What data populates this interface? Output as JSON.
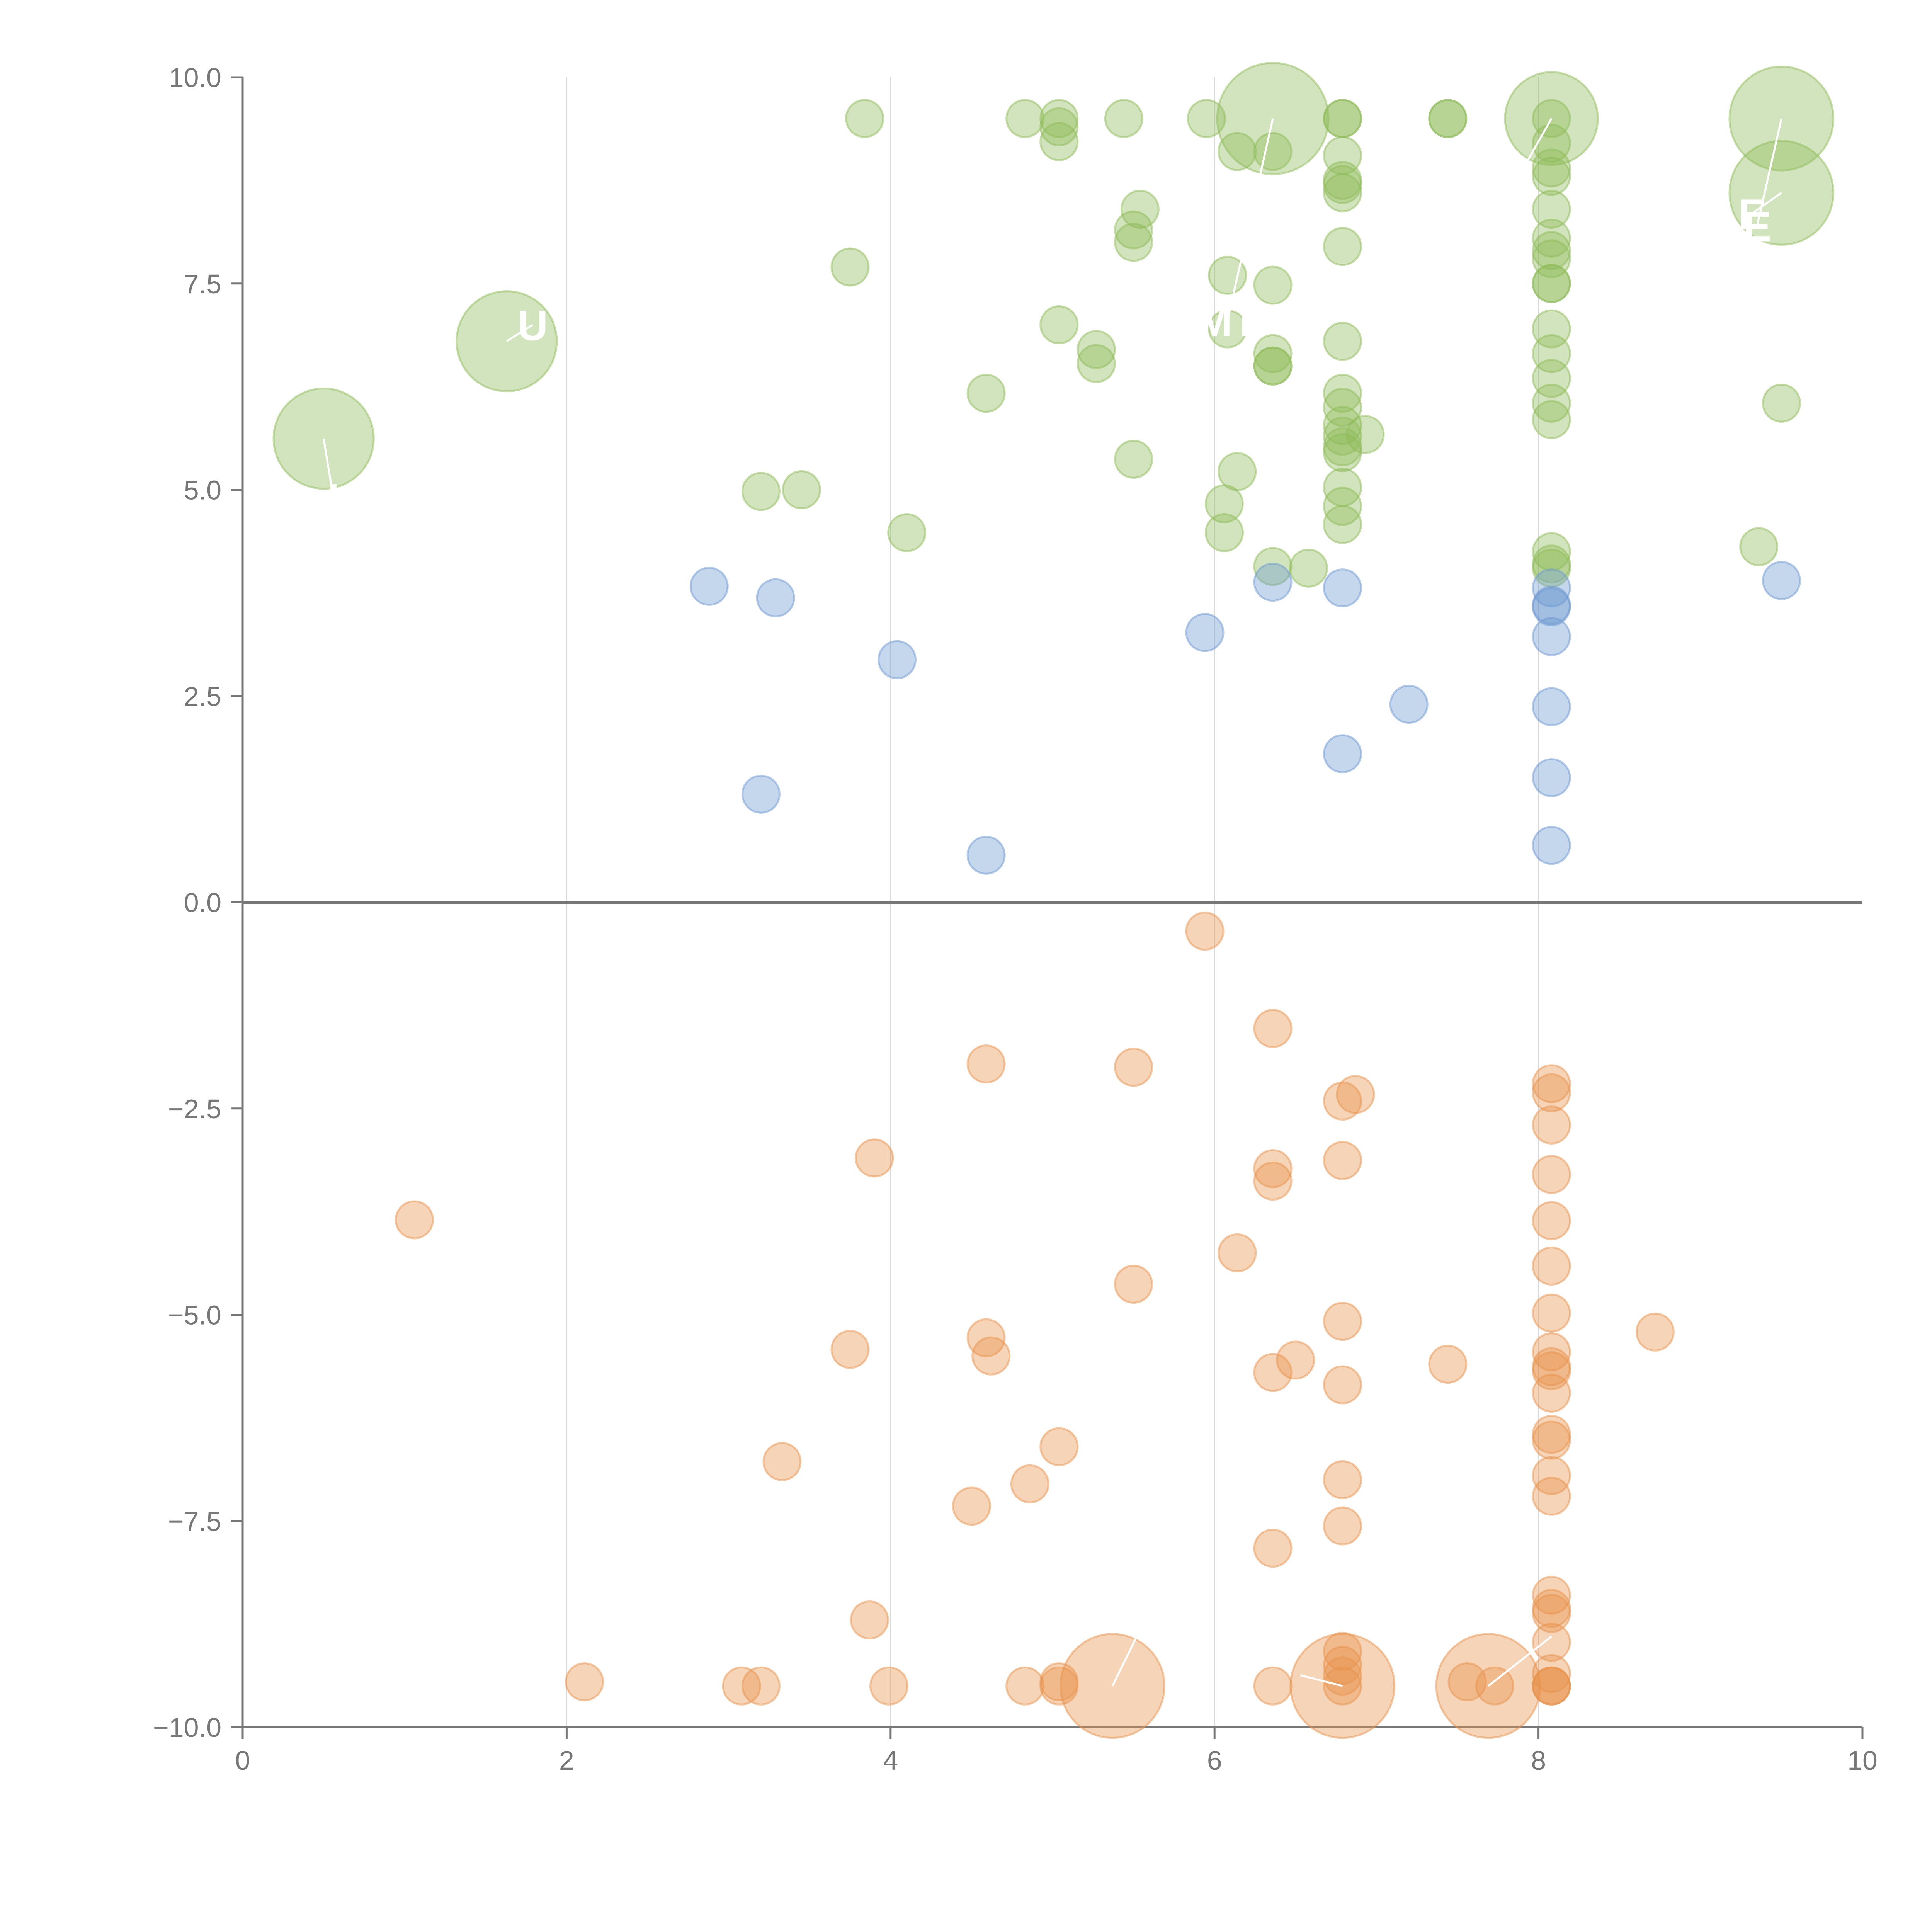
{
  "chart_data": {
    "type": "scatter",
    "title": "",
    "xlabel": "",
    "ylabel": "",
    "xlim": [
      0,
      10
    ],
    "ylim": [
      -10,
      10
    ],
    "x_ticks": [
      "0",
      "2",
      "4",
      "6",
      "8",
      "10"
    ],
    "y_ticks": [
      "10.0",
      "7.5",
      "5.0",
      "2.5",
      "0.0",
      "−2.5",
      "−5.0",
      "−7.5",
      "−10.0"
    ],
    "grid": "vertical",
    "legend": "none",
    "series": [
      {
        "name": "green",
        "color": "#8fbc5a",
        "points": [
          {
            "x": 3.84,
            "y": 9.5
          },
          {
            "x": 4.83,
            "y": 9.5
          },
          {
            "x": 5.04,
            "y": 9.5
          },
          {
            "x": 5.04,
            "y": 9.4
          },
          {
            "x": 5.44,
            "y": 9.5
          },
          {
            "x": 5.95,
            "y": 9.5
          },
          {
            "x": 6.36,
            "y": 9.5,
            "s": 3
          },
          {
            "x": 6.79,
            "y": 9.5
          },
          {
            "x": 6.79,
            "y": 9.5
          },
          {
            "x": 7.44,
            "y": 9.5
          },
          {
            "x": 7.44,
            "y": 9.5
          },
          {
            "x": 8.08,
            "y": 9.5,
            "s": 2.5
          },
          {
            "x": 8.08,
            "y": 9.5
          },
          {
            "x": 9.5,
            "y": 9.5,
            "s": 2.8
          },
          {
            "x": 5.04,
            "y": 9.22
          },
          {
            "x": 6.14,
            "y": 9.1
          },
          {
            "x": 6.36,
            "y": 9.1
          },
          {
            "x": 6.79,
            "y": 9.05
          },
          {
            "x": 6.79,
            "y": 8.75
          },
          {
            "x": 6.79,
            "y": 8.7
          },
          {
            "x": 6.79,
            "y": 8.6
          },
          {
            "x": 8.08,
            "y": 9.2
          },
          {
            "x": 8.08,
            "y": 8.9
          },
          {
            "x": 8.08,
            "y": 8.8
          },
          {
            "x": 8.08,
            "y": 8.4
          },
          {
            "x": 8.08,
            "y": 8.05
          },
          {
            "x": 8.08,
            "y": 7.9
          },
          {
            "x": 8.08,
            "y": 7.8
          },
          {
            "x": 8.08,
            "y": 7.5
          },
          {
            "x": 8.08,
            "y": 7.5
          },
          {
            "x": 5.54,
            "y": 8.4
          },
          {
            "x": 5.5,
            "y": 8.15
          },
          {
            "x": 5.5,
            "y": 8.0
          },
          {
            "x": 6.79,
            "y": 7.95
          },
          {
            "x": 9.5,
            "y": 8.6,
            "s": 2.8
          },
          {
            "x": 3.75,
            "y": 7.7
          },
          {
            "x": 6.08,
            "y": 7.6
          },
          {
            "x": 6.36,
            "y": 7.48
          },
          {
            "x": 1.63,
            "y": 6.8,
            "s": 2.7
          },
          {
            "x": 6.08,
            "y": 6.95
          },
          {
            "x": 5.04,
            "y": 7.0
          },
          {
            "x": 6.79,
            "y": 6.8
          },
          {
            "x": 8.08,
            "y": 6.95
          },
          {
            "x": 8.08,
            "y": 6.65
          },
          {
            "x": 8.08,
            "y": 6.35
          },
          {
            "x": 8.08,
            "y": 6.05
          },
          {
            "x": 8.08,
            "y": 5.85
          },
          {
            "x": 5.27,
            "y": 6.7
          },
          {
            "x": 5.27,
            "y": 6.53
          },
          {
            "x": 6.36,
            "y": 6.65
          },
          {
            "x": 6.36,
            "y": 6.5
          },
          {
            "x": 6.36,
            "y": 6.5
          },
          {
            "x": 4.59,
            "y": 6.17
          },
          {
            "x": 6.79,
            "y": 6.17
          },
          {
            "x": 6.79,
            "y": 6.0
          },
          {
            "x": 6.79,
            "y": 5.78
          },
          {
            "x": 6.79,
            "y": 5.65
          },
          {
            "x": 6.79,
            "y": 5.52
          },
          {
            "x": 6.79,
            "y": 5.45
          },
          {
            "x": 6.93,
            "y": 5.67
          },
          {
            "x": 0.5,
            "y": 5.62,
            "s": 2.7
          },
          {
            "x": 9.5,
            "y": 6.05
          },
          {
            "x": 5.5,
            "y": 5.37
          },
          {
            "x": 6.14,
            "y": 5.22
          },
          {
            "x": 3.2,
            "y": 4.98
          },
          {
            "x": 3.45,
            "y": 5.0
          },
          {
            "x": 6.79,
            "y": 5.03
          },
          {
            "x": 6.79,
            "y": 4.8
          },
          {
            "x": 6.79,
            "y": 4.58
          },
          {
            "x": 6.06,
            "y": 4.83
          },
          {
            "x": 6.06,
            "y": 4.48
          },
          {
            "x": 4.1,
            "y": 4.48
          },
          {
            "x": 8.08,
            "y": 4.25
          },
          {
            "x": 8.08,
            "y": 4.1
          },
          {
            "x": 8.08,
            "y": 4.05
          },
          {
            "x": 9.36,
            "y": 4.31
          },
          {
            "x": 6.36,
            "y": 4.07
          },
          {
            "x": 6.58,
            "y": 4.05
          }
        ]
      },
      {
        "name": "blue",
        "color": "#6f9ad1",
        "points": [
          {
            "x": 2.88,
            "y": 3.83
          },
          {
            "x": 3.29,
            "y": 3.69
          },
          {
            "x": 6.36,
            "y": 3.88
          },
          {
            "x": 6.79,
            "y": 3.81
          },
          {
            "x": 8.08,
            "y": 3.81
          },
          {
            "x": 8.08,
            "y": 3.6
          },
          {
            "x": 8.08,
            "y": 3.58
          },
          {
            "x": 8.08,
            "y": 3.22
          },
          {
            "x": 9.5,
            "y": 3.9
          },
          {
            "x": 4.04,
            "y": 2.94
          },
          {
            "x": 5.94,
            "y": 3.27
          },
          {
            "x": 7.2,
            "y": 2.4
          },
          {
            "x": 8.08,
            "y": 2.37
          },
          {
            "x": 6.79,
            "y": 1.8
          },
          {
            "x": 8.08,
            "y": 1.51
          },
          {
            "x": 3.2,
            "y": 1.31
          },
          {
            "x": 8.08,
            "y": 0.69
          },
          {
            "x": 4.59,
            "y": 0.57
          }
        ]
      },
      {
        "name": "orange",
        "color": "#e8944e",
        "points": [
          {
            "x": 5.94,
            "y": -0.35
          },
          {
            "x": 6.36,
            "y": -1.53
          },
          {
            "x": 4.59,
            "y": -1.96
          },
          {
            "x": 5.5,
            "y": -2.0
          },
          {
            "x": 6.79,
            "y": -2.41
          },
          {
            "x": 6.87,
            "y": -2.33
          },
          {
            "x": 8.08,
            "y": -2.2
          },
          {
            "x": 8.08,
            "y": -2.31
          },
          {
            "x": 8.08,
            "y": -2.7
          },
          {
            "x": 3.9,
            "y": -3.1
          },
          {
            "x": 6.79,
            "y": -3.13
          },
          {
            "x": 6.36,
            "y": -3.23
          },
          {
            "x": 6.36,
            "y": -3.38
          },
          {
            "x": 8.08,
            "y": -3.3
          },
          {
            "x": 1.06,
            "y": -3.85
          },
          {
            "x": 8.08,
            "y": -3.86
          },
          {
            "x": 6.14,
            "y": -4.25
          },
          {
            "x": 8.08,
            "y": -4.41
          },
          {
            "x": 5.5,
            "y": -4.63
          },
          {
            "x": 8.08,
            "y": -4.98
          },
          {
            "x": 6.79,
            "y": -5.08
          },
          {
            "x": 8.72,
            "y": -5.21
          },
          {
            "x": 4.59,
            "y": -5.28
          },
          {
            "x": 3.75,
            "y": -5.42
          },
          {
            "x": 4.62,
            "y": -5.5
          },
          {
            "x": 8.08,
            "y": -5.45
          },
          {
            "x": 6.5,
            "y": -5.55
          },
          {
            "x": 7.44,
            "y": -5.6
          },
          {
            "x": 8.08,
            "y": -5.63
          },
          {
            "x": 8.08,
            "y": -5.68
          },
          {
            "x": 6.36,
            "y": -5.7
          },
          {
            "x": 6.79,
            "y": -5.85
          },
          {
            "x": 8.08,
            "y": -5.95
          },
          {
            "x": 8.08,
            "y": -6.45
          },
          {
            "x": 8.08,
            "y": -6.52
          },
          {
            "x": 5.04,
            "y": -6.6
          },
          {
            "x": 3.33,
            "y": -6.78
          },
          {
            "x": 6.79,
            "y": -7.0
          },
          {
            "x": 8.08,
            "y": -6.95
          },
          {
            "x": 4.86,
            "y": -7.05
          },
          {
            "x": 8.08,
            "y": -7.2
          },
          {
            "x": 4.5,
            "y": -7.32
          },
          {
            "x": 6.79,
            "y": -7.56
          },
          {
            "x": 6.36,
            "y": -7.83
          },
          {
            "x": 8.08,
            "y": -8.4
          },
          {
            "x": 8.08,
            "y": -8.56
          },
          {
            "x": 8.08,
            "y": -8.62
          },
          {
            "x": 3.87,
            "y": -8.7
          },
          {
            "x": 8.08,
            "y": -8.97
          },
          {
            "x": 6.79,
            "y": -9.08
          },
          {
            "x": 6.79,
            "y": -9.25
          },
          {
            "x": 6.79,
            "y": -9.38
          },
          {
            "x": 8.08,
            "y": -9.35
          },
          {
            "x": 2.11,
            "y": -9.45
          },
          {
            "x": 3.08,
            "y": -9.5
          },
          {
            "x": 3.2,
            "y": -9.5
          },
          {
            "x": 3.99,
            "y": -9.5
          },
          {
            "x": 4.83,
            "y": -9.5
          },
          {
            "x": 5.04,
            "y": -9.45
          },
          {
            "x": 5.04,
            "y": -9.5
          },
          {
            "x": 5.37,
            "y": -9.5,
            "s": 2.8
          },
          {
            "x": 6.36,
            "y": -9.5
          },
          {
            "x": 6.79,
            "y": -9.5,
            "s": 2.8
          },
          {
            "x": 6.79,
            "y": -9.5
          },
          {
            "x": 7.56,
            "y": -9.45
          },
          {
            "x": 7.69,
            "y": -9.5,
            "s": 2.8
          },
          {
            "x": 7.73,
            "y": -9.5
          },
          {
            "x": 8.08,
            "y": -9.5
          },
          {
            "x": 8.08,
            "y": -9.5
          },
          {
            "x": 8.08,
            "y": -9.5
          }
        ]
      }
    ],
    "annotations": [
      {
        "text": "I",
        "x": 0.56,
        "y": 4.9,
        "ax": 0.5,
        "ay": 5.62
      },
      {
        "text": "U",
        "x": 1.79,
        "y": 7.0,
        "ax": 1.63,
        "ay": 6.8
      },
      {
        "text": "MT",
        "x": 6.08,
        "y": 7.05,
        "ax": 6.36,
        "ay": 9.5
      },
      {
        "text": "E",
        "x": 9.35,
        "y": 8.2,
        "ax": 9.5,
        "ay": 9.5
      },
      {
        "text": "E",
        "x": 9.32,
        "y": 8.35,
        "ax": 9.5,
        "ay": 8.6
      },
      {
        "text": "",
        "x": 7.85,
        "y": 8.7,
        "ax": 8.08,
        "ay": 9.5
      },
      {
        "text": "",
        "x": 6.53,
        "y": -9.37,
        "ax": 6.79,
        "ay": -9.5
      },
      {
        "text": "",
        "x": 5.52,
        "y": -8.9,
        "ax": 5.37,
        "ay": -9.5
      },
      {
        "text": "",
        "x": 8.08,
        "y": -8.9,
        "ax": 7.69,
        "ay": -9.5
      }
    ]
  }
}
